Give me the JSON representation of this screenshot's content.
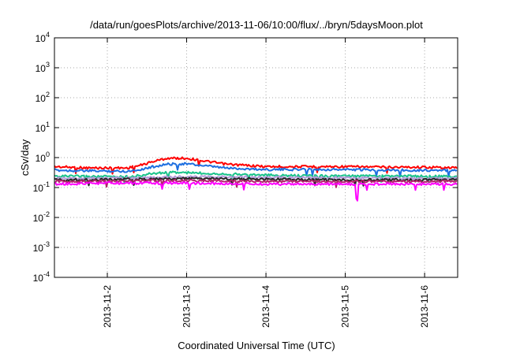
{
  "chart_data": {
    "type": "line",
    "title": "/data/run/goesPlots/archive/2013-11-06/10:00/flux/../bryn/5daysMoon.plot",
    "xlabel": "Coordinated Universal Time (UTC)",
    "ylabel": "cSv/day",
    "yscale": "log",
    "ylim": [
      0.0001,
      10000
    ],
    "xlim": [
      "2013-11-01T08:00",
      "2013-11-06T10:00"
    ],
    "grid": true,
    "y_ticks": [
      {
        "value": 0.0001,
        "base": "10",
        "exp": "-4"
      },
      {
        "value": 0.001,
        "base": "10",
        "exp": "-3"
      },
      {
        "value": 0.01,
        "base": "10",
        "exp": "-2"
      },
      {
        "value": 0.1,
        "base": "10",
        "exp": "-1"
      },
      {
        "value": 1,
        "base": "10",
        "exp": "0"
      },
      {
        "value": 10,
        "base": "10",
        "exp": "1"
      },
      {
        "value": 100,
        "base": "10",
        "exp": "2"
      },
      {
        "value": 1000,
        "base": "10",
        "exp": "3"
      },
      {
        "value": 10000,
        "base": "10",
        "exp": "4"
      }
    ],
    "x_ticks": [
      {
        "value": "2013-11-02T00:00",
        "label": "2013-11-2"
      },
      {
        "value": "2013-11-03T00:00",
        "label": "2013-11-3"
      },
      {
        "value": "2013-11-04T00:00",
        "label": "2013-11-4"
      },
      {
        "value": "2013-11-05T00:00",
        "label": "2013-11-5"
      },
      {
        "value": "2013-11-06T00:00",
        "label": "2013-11-6"
      }
    ],
    "series": [
      {
        "color": "#ff0000",
        "x": [
          "2013-11-01T08:00",
          "2013-11-01T18:00",
          "2013-11-02T06:00",
          "2013-11-02T10:00",
          "2013-11-02T14:00",
          "2013-11-02T18:00",
          "2013-11-03T00:00",
          "2013-11-03T06:00",
          "2013-11-03T12:00",
          "2013-11-03T18:00",
          "2013-11-04T00:00",
          "2013-11-04T12:00",
          "2013-11-05T00:00",
          "2013-11-05T12:00",
          "2013-11-06T00:00",
          "2013-11-06T10:00"
        ],
        "values": [
          0.5,
          0.45,
          0.45,
          0.55,
          0.75,
          0.95,
          0.95,
          0.75,
          0.6,
          0.55,
          0.5,
          0.5,
          0.5,
          0.48,
          0.48,
          0.45
        ]
      },
      {
        "color": "#1e6fe0",
        "x": [
          "2013-11-01T08:00",
          "2013-11-01T18:00",
          "2013-11-02T06:00",
          "2013-11-02T10:00",
          "2013-11-02T14:00",
          "2013-11-02T18:00",
          "2013-11-03T00:00",
          "2013-11-03T06:00",
          "2013-11-03T12:00",
          "2013-11-03T18:00",
          "2013-11-04T00:00",
          "2013-11-04T12:00",
          "2013-11-05T00:00",
          "2013-11-05T12:00",
          "2013-11-06T00:00",
          "2013-11-06T10:00"
        ],
        "values": [
          0.38,
          0.36,
          0.35,
          0.4,
          0.5,
          0.6,
          0.62,
          0.52,
          0.45,
          0.42,
          0.4,
          0.4,
          0.4,
          0.38,
          0.38,
          0.36
        ]
      },
      {
        "color": "#19c38a",
        "x": [
          "2013-11-01T08:00",
          "2013-11-02T06:00",
          "2013-11-02T10:00",
          "2013-11-02T14:00",
          "2013-11-02T20:00",
          "2013-11-03T06:00",
          "2013-11-03T18:00",
          "2013-11-04T06:00",
          "2013-11-05T00:00",
          "2013-11-06T00:00",
          "2013-11-06T10:00"
        ],
        "values": [
          0.24,
          0.23,
          0.25,
          0.3,
          0.32,
          0.3,
          0.27,
          0.25,
          0.24,
          0.24,
          0.23
        ]
      },
      {
        "color": "#b39ad9",
        "x": [
          "2013-11-01T08:00",
          "2013-11-02T12:00",
          "2013-11-03T00:00",
          "2013-11-04T00:00",
          "2013-11-05T00:00",
          "2013-11-06T10:00"
        ],
        "values": [
          0.2,
          0.21,
          0.23,
          0.22,
          0.21,
          0.2
        ]
      },
      {
        "color": "#262626",
        "x": [
          "2013-11-01T08:00",
          "2013-11-02T12:00",
          "2013-11-03T00:00",
          "2013-11-04T00:00",
          "2013-11-05T00:00",
          "2013-11-06T10:00"
        ],
        "values": [
          0.18,
          0.19,
          0.2,
          0.19,
          0.18,
          0.18
        ]
      },
      {
        "color": "#b0246a",
        "x": [
          "2013-11-01T08:00",
          "2013-11-02T12:00",
          "2013-11-03T00:00",
          "2013-11-04T00:00",
          "2013-11-05T00:00",
          "2013-11-06T10:00"
        ],
        "values": [
          0.16,
          0.17,
          0.17,
          0.16,
          0.16,
          0.16
        ]
      },
      {
        "color": "#ff00ff",
        "x": [
          "2013-11-01T08:00",
          "2013-11-02T00:00",
          "2013-11-03T00:00",
          "2013-11-04T00:00",
          "2013-11-05T00:00",
          "2013-11-05T03:00",
          "2013-11-05T03:30",
          "2013-11-05T04:00",
          "2013-11-05T12:00",
          "2013-11-06T10:00"
        ],
        "values": [
          0.13,
          0.14,
          0.14,
          0.13,
          0.13,
          0.13,
          0.02,
          0.13,
          0.13,
          0.13
        ]
      }
    ]
  }
}
